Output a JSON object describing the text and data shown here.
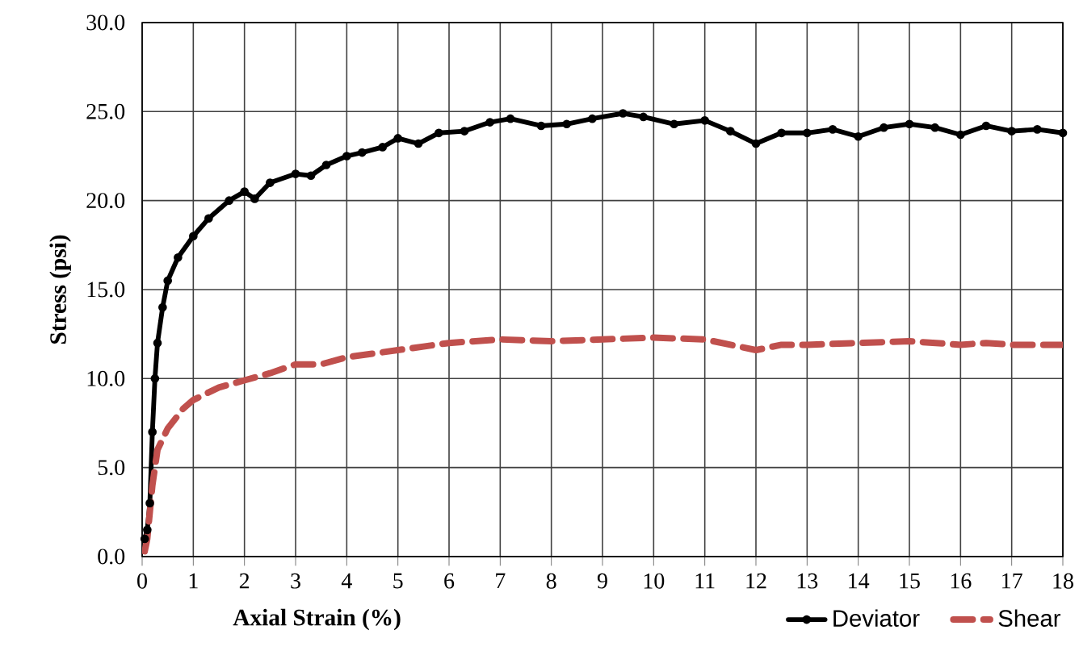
{
  "chart_data": {
    "type": "line",
    "xlabel": "Axial Strain (%)",
    "ylabel": "Stress (psi)",
    "xlim": [
      0,
      18
    ],
    "ylim": [
      0,
      30
    ],
    "xticks": [
      0,
      1,
      2,
      3,
      4,
      5,
      6,
      7,
      8,
      9,
      10,
      11,
      12,
      13,
      14,
      15,
      16,
      17,
      18
    ],
    "yticks": [
      {
        "value": 0,
        "label": "0.0"
      },
      {
        "value": 5,
        "label": "5.0"
      },
      {
        "value": 10,
        "label": "10.0"
      },
      {
        "value": 15,
        "label": "15.0"
      },
      {
        "value": 20,
        "label": "20.0"
      },
      {
        "value": 25,
        "label": "25.0"
      },
      {
        "value": 30,
        "label": "30.0"
      }
    ],
    "grid": true,
    "legend": "bottom right",
    "series": [
      {
        "name": "Deviator",
        "color": "#000000",
        "marker": "circle",
        "line_style": "solid",
        "x": [
          0.05,
          0.1,
          0.15,
          0.2,
          0.25,
          0.3,
          0.4,
          0.5,
          0.7,
          1.0,
          1.3,
          1.7,
          2.0,
          2.2,
          2.5,
          3.0,
          3.3,
          3.6,
          4.0,
          4.3,
          4.7,
          5.0,
          5.4,
          5.8,
          6.3,
          6.8,
          7.2,
          7.8,
          8.3,
          8.8,
          9.4,
          9.8,
          10.4,
          11.0,
          11.5,
          12.0,
          12.5,
          13.0,
          13.5,
          14.0,
          14.5,
          15.0,
          15.5,
          16.0,
          16.5,
          17.0,
          17.5,
          18.0
        ],
        "values": [
          1.0,
          1.5,
          3,
          7,
          10,
          12,
          14,
          15.5,
          16.8,
          18,
          19,
          20,
          20.5,
          20.1,
          21,
          21.5,
          21.4,
          22,
          22.5,
          22.7,
          23,
          23.5,
          23.2,
          23.8,
          23.9,
          24.4,
          24.6,
          24.2,
          24.3,
          24.6,
          24.9,
          24.7,
          24.3,
          24.5,
          23.9,
          23.2,
          23.8,
          23.8,
          24.0,
          23.6,
          24.1,
          24.3,
          24.1,
          23.7,
          24.2,
          23.9,
          24.0,
          23.8
        ]
      },
      {
        "name": "Shear",
        "color": "#c0504d",
        "marker": "none",
        "line_style": "dashed",
        "x": [
          0.05,
          0.1,
          0.2,
          0.3,
          0.5,
          0.8,
          1,
          1.5,
          2,
          2.5,
          3,
          3.5,
          4,
          4.5,
          5,
          5.5,
          6,
          7,
          8,
          9,
          10,
          11,
          12,
          12.5,
          13,
          14,
          15,
          16,
          16.5,
          17,
          18
        ],
        "values": [
          0.3,
          1,
          4,
          6,
          7.2,
          8.3,
          8.8,
          9.5,
          9.9,
          10.3,
          10.8,
          10.8,
          11.2,
          11.4,
          11.6,
          11.8,
          12.0,
          12.2,
          12.1,
          12.2,
          12.3,
          12.2,
          11.6,
          11.9,
          11.9,
          12.0,
          12.1,
          11.9,
          12.0,
          11.9,
          11.9
        ]
      }
    ]
  }
}
